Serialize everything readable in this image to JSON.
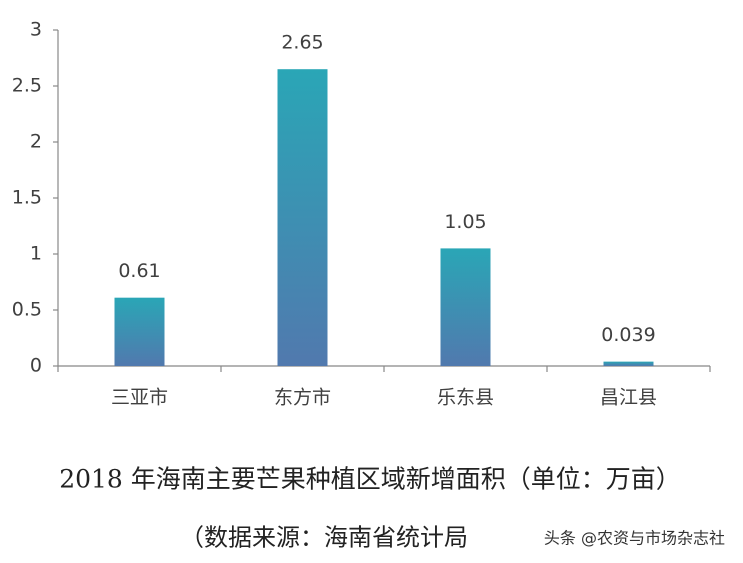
{
  "chart_data": {
    "type": "bar",
    "title": "2018 年海南主要芒果种植区域新增面积（单位：万亩）",
    "source": "（数据来源：海南省统计局",
    "watermark": "头条 @农资与市场杂志社",
    "categories": [
      "三亚市",
      "东方市",
      "乐东县",
      "昌江县"
    ],
    "values": [
      0.61,
      2.65,
      1.05,
      0.039
    ],
    "colors": [
      "#2aa6b6",
      "#5179ae"
    ],
    "ylim": [
      0,
      3
    ],
    "yticks": [
      0,
      0.5,
      1,
      1.5,
      2,
      2.5,
      3
    ],
    "grid": false
  }
}
